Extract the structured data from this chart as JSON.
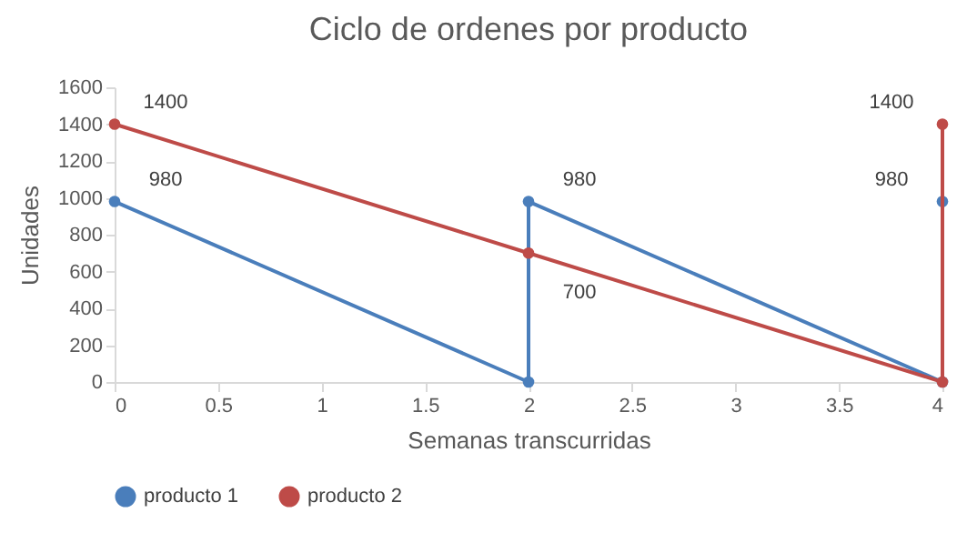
{
  "chart_data": {
    "type": "line",
    "title": "Ciclo de  ordenes por producto",
    "xlabel": "Semanas transcurridas",
    "ylabel": "Unidades",
    "xlim": [
      0,
      4
    ],
    "xticks": [
      0,
      0.5,
      1,
      1.5,
      2,
      2.5,
      3,
      3.5,
      4
    ],
    "ylim": [
      0,
      1600
    ],
    "yticks": [
      0,
      200,
      400,
      600,
      800,
      1000,
      1200,
      1400,
      1600
    ],
    "marker": "circle",
    "legend": "bottom",
    "grid": false,
    "series": [
      {
        "name": "producto 1",
        "color": "#4a7ebb",
        "x": [
          0,
          2,
          2,
          4,
          4
        ],
        "values": [
          980,
          0,
          980,
          0,
          980
        ],
        "value_labels": [
          "980",
          null,
          "980",
          null,
          "980"
        ]
      },
      {
        "name": "producto 2",
        "color": "#be4b48",
        "x": [
          0,
          2,
          4,
          4
        ],
        "values": [
          1400,
          700,
          0,
          1400
        ],
        "value_labels": [
          "1400",
          "700",
          null,
          "1400"
        ]
      }
    ]
  }
}
